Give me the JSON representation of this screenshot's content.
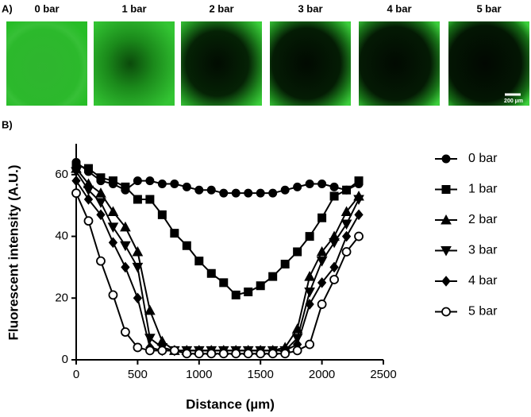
{
  "panel_a": {
    "label": "A)",
    "images": [
      "0 bar",
      "1 bar",
      "2 bar",
      "3 bar",
      "4 bar",
      "5 bar"
    ],
    "scale_bar": "200 µm"
  },
  "panel_b_label": "B)",
  "chart_data": {
    "type": "line",
    "x_label": "Distance (µm)",
    "y_label": "Fluorescent intensity (A.U.)",
    "x": [
      0,
      100,
      200,
      300,
      400,
      500,
      600,
      700,
      800,
      900,
      1000,
      1100,
      1200,
      1300,
      1400,
      1500,
      1600,
      1700,
      1800,
      1900,
      2000,
      2100,
      2200,
      2300
    ],
    "series": [
      {
        "name": "0 bar",
        "marker": "circle",
        "color": "#000000",
        "values": [
          64,
          61,
          58,
          57,
          55,
          58,
          58,
          57,
          57,
          56,
          55,
          55,
          54,
          54,
          54,
          54,
          54,
          55,
          56,
          57,
          57,
          56,
          55,
          57
        ]
      },
      {
        "name": "1 bar",
        "marker": "square",
        "color": "#000000",
        "values": [
          63,
          62,
          59,
          58,
          56,
          52,
          52,
          47,
          41,
          37,
          32,
          28,
          25,
          21,
          22,
          24,
          27,
          31,
          35,
          40,
          46,
          53,
          55,
          58
        ]
      },
      {
        "name": "2 bar",
        "marker": "triangle-up",
        "color": "#000000",
        "values": [
          62,
          57,
          54,
          48,
          43,
          35,
          16,
          6,
          3,
          3,
          3,
          3,
          3,
          3,
          3,
          3,
          3,
          4,
          10,
          27,
          35,
          40,
          48,
          53
        ]
      },
      {
        "name": "3 bar",
        "marker": "triangle-down",
        "color": "#000000",
        "values": [
          61,
          55,
          51,
          43,
          37,
          30,
          7,
          4,
          3,
          3,
          3,
          3,
          3,
          3,
          3,
          3,
          3,
          3,
          7,
          22,
          32,
          38,
          44,
          52
        ]
      },
      {
        "name": "4 bar",
        "marker": "diamond",
        "color": "#000000",
        "values": [
          58,
          52,
          47,
          38,
          30,
          20,
          4,
          3,
          3,
          3,
          3,
          3,
          3,
          3,
          3,
          3,
          3,
          3,
          5,
          18,
          25,
          30,
          40,
          47
        ]
      },
      {
        "name": "5 bar",
        "marker": "open-circle",
        "color": "#000000",
        "values": [
          54,
          45,
          32,
          21,
          9,
          4,
          3,
          3,
          3,
          2,
          2,
          2,
          2,
          2,
          2,
          2,
          2,
          2,
          3,
          5,
          18,
          26,
          35,
          40
        ]
      }
    ],
    "xlim": [
      0,
      2500
    ],
    "xticks": [
      0,
      500,
      1000,
      1500,
      2000,
      2500
    ],
    "ylim": [
      0,
      70
    ],
    "yticks": [
      0,
      20,
      40,
      60
    ],
    "legend": "right"
  }
}
